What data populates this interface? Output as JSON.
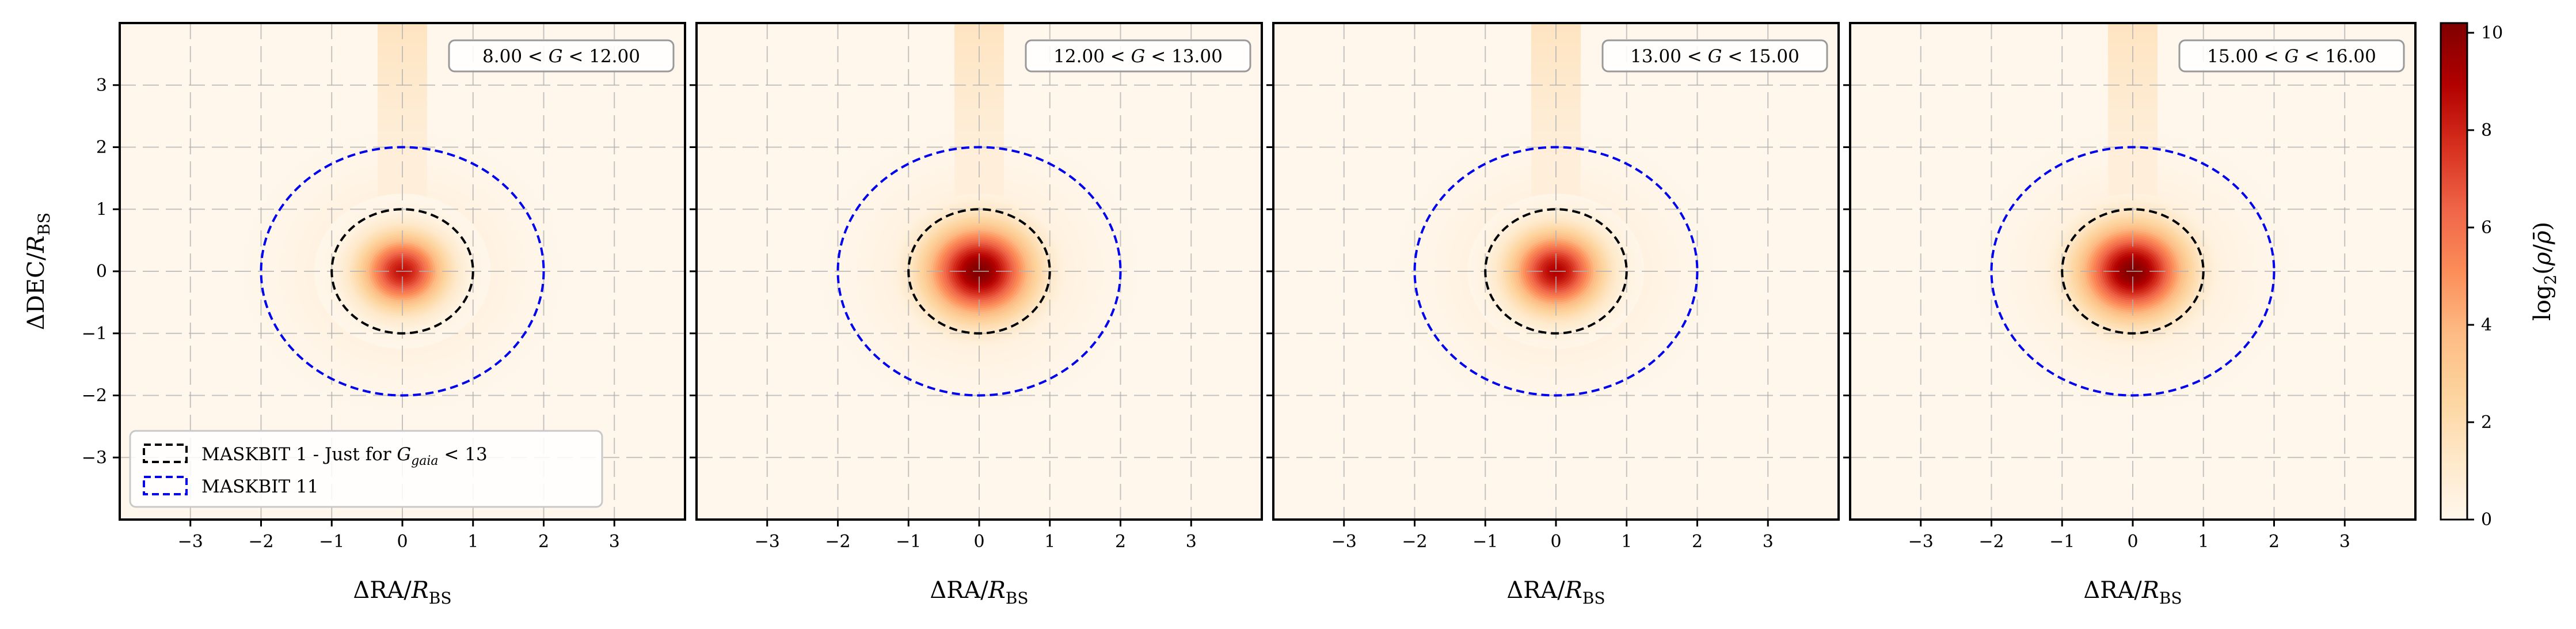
{
  "chart_data": {
    "type": "heatmap",
    "panels": [
      {
        "label_lo": "8.00",
        "label_hi": "12.00",
        "peak": 8.5,
        "sigma": 0.4
      },
      {
        "label_lo": "12.00",
        "label_hi": "13.00",
        "peak": 10.2,
        "sigma": 0.5
      },
      {
        "label_lo": "13.00",
        "label_hi": "15.00",
        "peak": 9.0,
        "sigma": 0.43
      },
      {
        "label_lo": "15.00",
        "label_hi": "16.00",
        "peak": 10.2,
        "sigma": 0.5
      }
    ],
    "range_symbol": "G",
    "xlabel": {
      "main": "ΔRA/",
      "var": "R",
      "sub": "BS"
    },
    "ylabel": {
      "main": "ΔDEC/",
      "var": "R",
      "sub": "BS"
    },
    "xlim": [
      -4,
      4
    ],
    "ylim": [
      -4,
      4
    ],
    "xticks": [
      -3,
      -2,
      -1,
      0,
      1,
      2,
      3
    ],
    "yticks": [
      -3,
      -2,
      -1,
      0,
      1,
      2,
      3
    ],
    "grid": true,
    "circles": [
      {
        "radius": 1,
        "color": "#000000",
        "label": "MASKBIT 1 - Just for "
      },
      {
        "radius": 2,
        "color": "#0000ee",
        "label": "MASKBIT 11"
      }
    ],
    "legend_extra": {
      "var": "G",
      "sub": "gaia",
      "tail": " < 13"
    },
    "legend_position": "lower-left",
    "colorbar": {
      "label_pre": "log",
      "label_sub": "2",
      "label_mid": "(",
      "label_rho": "ρ",
      "label_slash": "/",
      "label_rhobar": "ρ̄",
      "label_post": ")",
      "min": 0,
      "max": 10.2,
      "ticks": [
        "0",
        "2",
        "4",
        "6",
        "8",
        "10"
      ],
      "colormap": "OrRd"
    }
  }
}
